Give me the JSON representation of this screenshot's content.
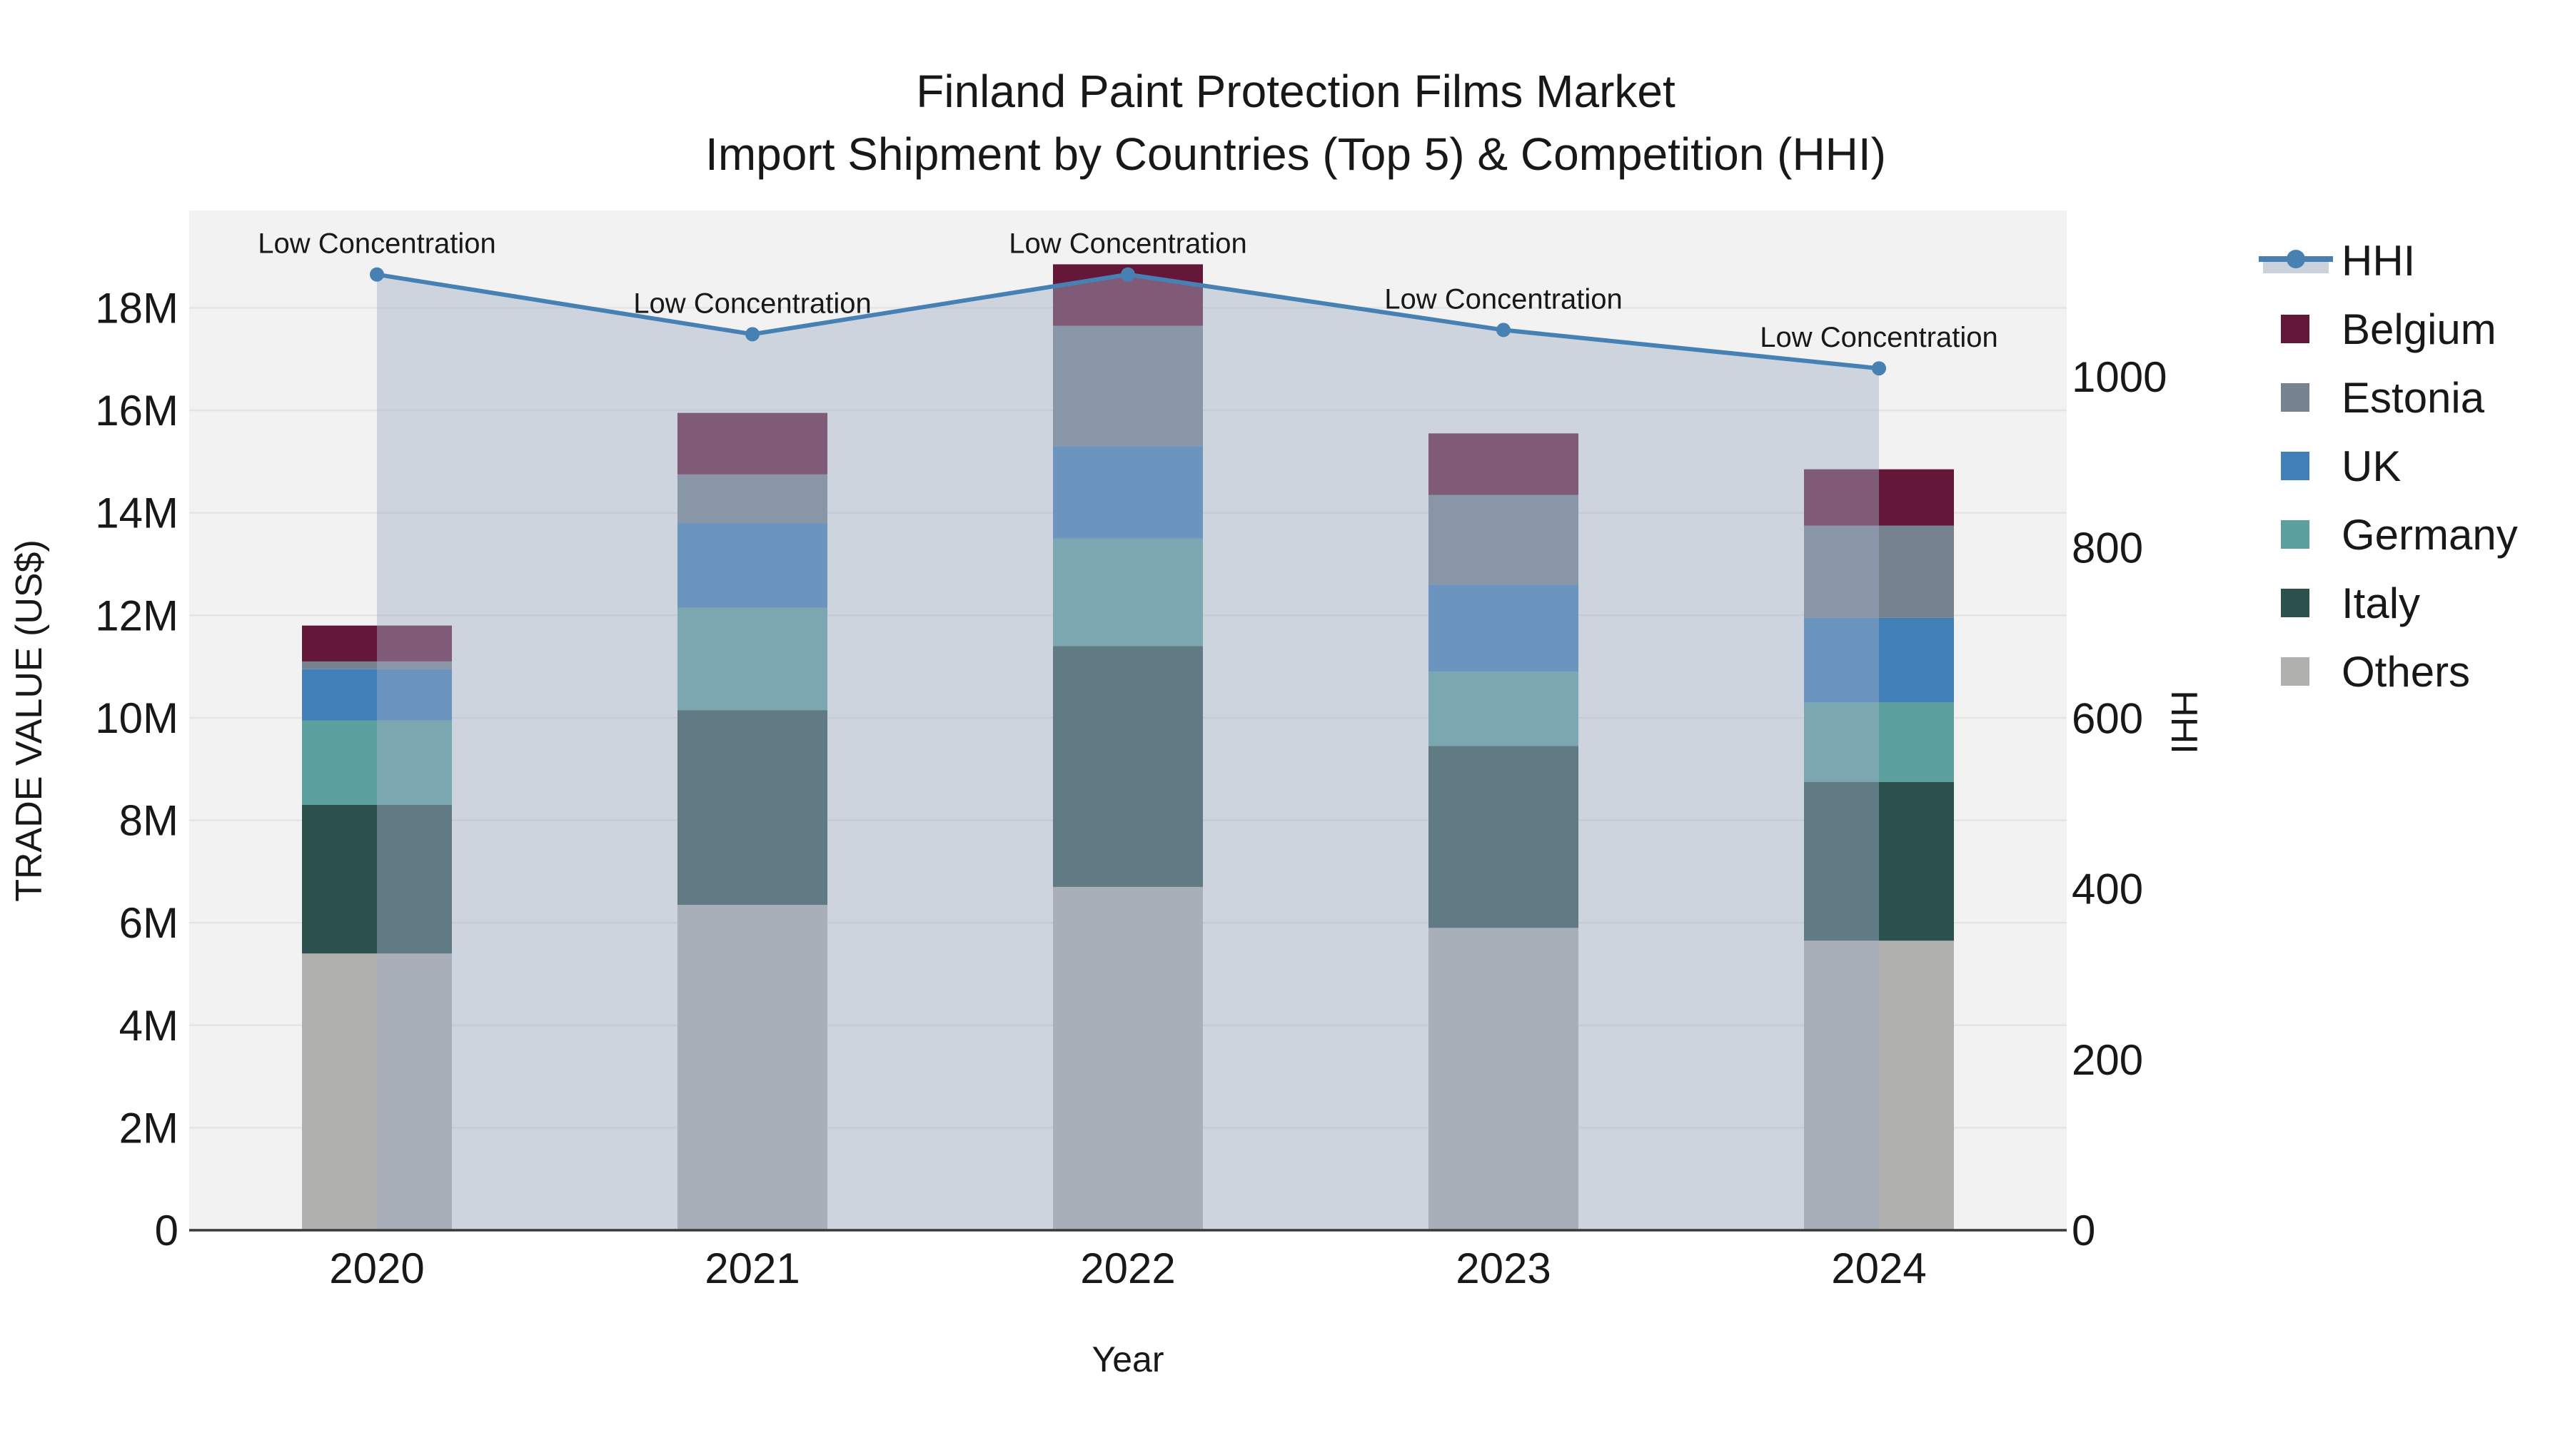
{
  "title": {
    "line1": "Finland Paint Protection Films Market",
    "line2": "Import Shipment by Countries (Top 5) & Competition (HHI)"
  },
  "axes": {
    "y_left": {
      "title": "TRADE VALUE (US$)",
      "tick_labels": [
        "0",
        "2M",
        "4M",
        "6M",
        "8M",
        "10M",
        "12M",
        "14M",
        "16M",
        "18M"
      ],
      "tick_values": [
        0,
        2,
        4,
        6,
        8,
        10,
        12,
        14,
        16,
        18
      ]
    },
    "y_right": {
      "title": "HHI",
      "tick_labels": [
        "0",
        "200",
        "400",
        "600",
        "800",
        "1000"
      ],
      "tick_values": [
        0,
        200,
        400,
        600,
        800,
        1000
      ]
    },
    "x": {
      "title": "Year",
      "categories": [
        "2020",
        "2021",
        "2022",
        "2023",
        "2024"
      ]
    }
  },
  "annotations": [
    {
      "text": "Low Concentration",
      "category": "2020"
    },
    {
      "text": "Low Concentration",
      "category": "2021"
    },
    {
      "text": "Low Concentration",
      "category": "2022"
    },
    {
      "text": "Low Concentration",
      "category": "2023"
    },
    {
      "text": "Low Concentration",
      "category": "2024"
    }
  ],
  "legend": {
    "entries": [
      {
        "label": "HHI",
        "type": "line",
        "color": "#4781b4"
      },
      {
        "label": "Belgium",
        "type": "swatch",
        "color": "#65173a"
      },
      {
        "label": "Estonia",
        "type": "swatch",
        "color": "#75828f"
      },
      {
        "label": "UK",
        "type": "swatch",
        "color": "#417fb9"
      },
      {
        "label": "Germany",
        "type": "swatch",
        "color": "#5ba09f"
      },
      {
        "label": "Italy",
        "type": "swatch",
        "color": "#2c504d"
      },
      {
        "label": "Others",
        "type": "swatch",
        "color": "#b0b0ae"
      }
    ]
  },
  "chart_data": {
    "type": "bar",
    "subtype": "stacked bars with overlaid line + area (dual y-axis)",
    "categories": [
      "2020",
      "2021",
      "2022",
      "2023",
      "2024"
    ],
    "value_unit": "US$ millions",
    "ylim_left": [
      0,
      19.9
    ],
    "ylim_right": [
      0,
      1195
    ],
    "grid": "horizontal, left axis",
    "legend_position": "right",
    "series": [
      {
        "name": "Others",
        "color": "#b0b0ae",
        "values": [
          5.4,
          6.35,
          6.7,
          5.9,
          5.65
        ]
      },
      {
        "name": "Italy",
        "color": "#2c504d",
        "values": [
          2.9,
          3.8,
          4.7,
          3.55,
          3.1
        ]
      },
      {
        "name": "Germany",
        "color": "#5ba09f",
        "values": [
          1.65,
          2.0,
          2.1,
          1.45,
          1.55
        ]
      },
      {
        "name": "UK",
        "color": "#417fb9",
        "values": [
          1.0,
          1.65,
          1.8,
          1.7,
          1.65
        ]
      },
      {
        "name": "Estonia",
        "color": "#75828f",
        "values": [
          0.15,
          0.95,
          2.35,
          1.75,
          1.8
        ]
      },
      {
        "name": "Belgium",
        "color": "#65173a",
        "values": [
          0.7,
          1.2,
          1.2,
          1.2,
          1.1
        ]
      }
    ],
    "bar_totals": [
      11.8,
      15.95,
      18.85,
      15.55,
      14.85
    ],
    "line_series": {
      "name": "HHI",
      "color": "#4781b4",
      "axis": "right",
      "fill": "tozero",
      "values": [
        1120,
        1050,
        1120,
        1055,
        1010
      ]
    }
  },
  "colors": {
    "page_bg": "#ffffff",
    "plot_bg": "#f2f2f3",
    "grid": "#e4e4e4",
    "axis_line": "#3b3b3b",
    "text": "#181818",
    "area_fill": "rgba(160,175,198,0.45)",
    "legend_area_swatch": "#ccd2db",
    "hhi_line": "#4781b4"
  }
}
